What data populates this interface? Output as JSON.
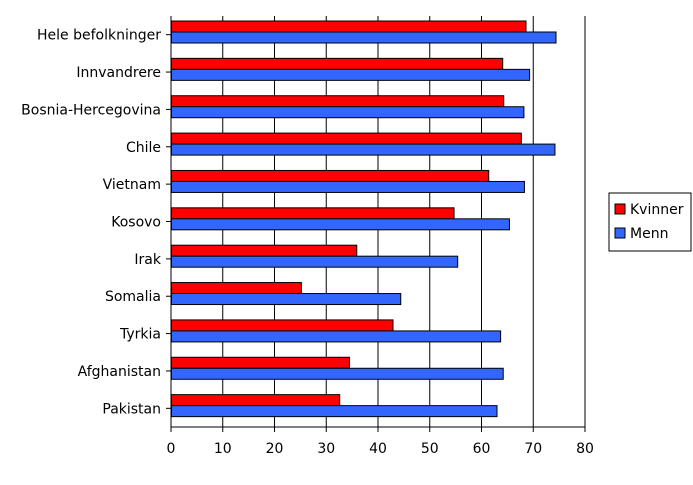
{
  "chart_data": {
    "type": "bar",
    "orientation": "horizontal",
    "categories": [
      "Hele befolkninger",
      "Innvandrere",
      "Bosnia-Hercegovina",
      "Chile",
      "Vietnam",
      "Kosovo",
      "Irak",
      "Somalia",
      "Tyrkia",
      "Afghanistan",
      "Pakistan"
    ],
    "series": [
      {
        "name": "Kvinner",
        "color": "#ff0000",
        "values": [
          68.5,
          64,
          64.2,
          67.6,
          61.3,
          54.6,
          35.8,
          25.1,
          42.8,
          34.4,
          32.5
        ]
      },
      {
        "name": "Menn",
        "color": "#3366ff",
        "values": [
          74.3,
          69.2,
          68.1,
          74.1,
          68.2,
          65.3,
          55.3,
          44.3,
          63.6,
          64.1,
          62.9
        ]
      }
    ],
    "xlim": [
      0,
      80
    ],
    "x_ticks": [
      "0",
      "10",
      "20",
      "30",
      "40",
      "50",
      "60",
      "70",
      "80"
    ],
    "grid": "vertical",
    "legend_position": "right",
    "title": "",
    "xlabel": "",
    "ylabel": ""
  }
}
